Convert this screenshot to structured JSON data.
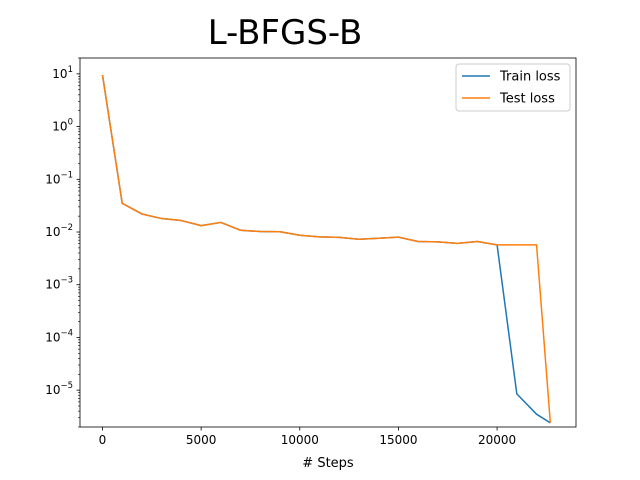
{
  "chart_data": {
    "type": "line",
    "title": "L-BFGS-B",
    "xlabel": "# Steps",
    "ylabel": "",
    "xscale": "linear",
    "yscale": "log",
    "xlim": [
      -1140,
      24000
    ],
    "ylim": [
      2e-06,
      20
    ],
    "xticks": [
      0,
      5000,
      10000,
      15000,
      20000
    ],
    "xtick_labels": [
      "0",
      "5000",
      "10000",
      "15000",
      "20000"
    ],
    "yticks": [
      1e-05,
      0.0001,
      0.001,
      0.01,
      0.1,
      1,
      10
    ],
    "ytick_labels": [
      {
        "base": "10",
        "exp": "−5"
      },
      {
        "base": "10",
        "exp": "−4"
      },
      {
        "base": "10",
        "exp": "−3"
      },
      {
        "base": "10",
        "exp": "−2"
      },
      {
        "base": "10",
        "exp": "−1"
      },
      {
        "base": "10",
        "exp": "0"
      },
      {
        "base": "10",
        "exp": "1"
      }
    ],
    "grid": false,
    "legend_position": "top-right",
    "series": [
      {
        "name": "Train loss",
        "color": "#1f77b4",
        "x": [
          0,
          1000,
          2000,
          3000,
          4000,
          5000,
          6000,
          7000,
          8000,
          9000,
          10000,
          11000,
          12000,
          13000,
          14000,
          15000,
          16000,
          17000,
          18000,
          19000,
          20000,
          21000,
          22000,
          22700
        ],
        "y": [
          9.5,
          0.035,
          0.022,
          0.018,
          0.0165,
          0.0132,
          0.0152,
          0.0108,
          0.0102,
          0.0101,
          0.0087,
          0.0081,
          0.0079,
          0.0073,
          0.0076,
          0.008,
          0.0066,
          0.0065,
          0.0061,
          0.0066,
          0.0057,
          8.5e-06,
          3.5e-06,
          2.4e-06
        ]
      },
      {
        "name": "Test loss",
        "color": "#ff7f0e",
        "x": [
          0,
          1000,
          2000,
          3000,
          4000,
          5000,
          6000,
          7000,
          8000,
          9000,
          10000,
          11000,
          12000,
          13000,
          14000,
          15000,
          16000,
          17000,
          18000,
          19000,
          20000,
          21000,
          22000,
          22700
        ],
        "y": [
          9.5,
          0.035,
          0.022,
          0.018,
          0.0165,
          0.0132,
          0.0152,
          0.0108,
          0.0102,
          0.0101,
          0.0087,
          0.0081,
          0.0079,
          0.0073,
          0.0076,
          0.008,
          0.0066,
          0.0065,
          0.0061,
          0.0066,
          0.0057,
          0.0057,
          0.0057,
          2.4e-06
        ]
      }
    ]
  }
}
